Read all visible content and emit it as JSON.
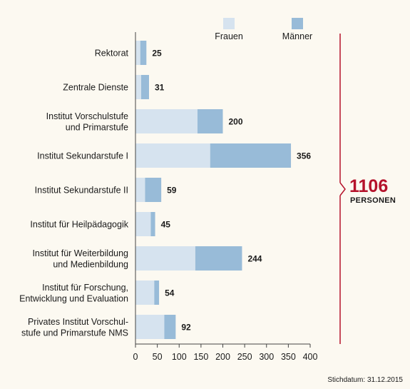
{
  "chart_data": {
    "type": "bar",
    "orientation": "horizontal",
    "stacked": true,
    "categories": [
      [
        "Rektorat"
      ],
      [
        "Zentrale Dienste"
      ],
      [
        "Institut Vorschulstufe",
        "und Primarstufe"
      ],
      [
        "Institut Sekundarstufe I"
      ],
      [
        "Institut Sekundarstufe II"
      ],
      [
        "Institut für Heilpädagogik"
      ],
      [
        "Institut für Weiterbildung",
        "und Medienbildung"
      ],
      [
        "Institut für Forschung,",
        "Entwicklung und Evaluation"
      ],
      [
        "Privates Institut Vorschul-",
        "stufe und Primarstufe NMS"
      ]
    ],
    "series": [
      {
        "name": "Frauen",
        "color": "#d6e3ef",
        "values": [
          11,
          13,
          142,
          171,
          22,
          35,
          137,
          43,
          66
        ]
      },
      {
        "name": "Männer",
        "color": "#98bbd8",
        "values": [
          14,
          18,
          58,
          185,
          37,
          10,
          107,
          11,
          26
        ]
      }
    ],
    "totals": [
      "25",
      "31",
      "200",
      "356",
      "59",
      "45",
      "244",
      "54",
      "92"
    ],
    "xlim": [
      0,
      400
    ],
    "xticks": [
      "0",
      "50",
      "100",
      "150",
      "200",
      "250",
      "300",
      "350",
      "400"
    ],
    "legend_position": "top-right",
    "summary": {
      "value": "1106",
      "label": "PERSONEN",
      "accent_color": "#b5122b"
    },
    "footnote": "Stichdatum: 31.12.2015"
  }
}
